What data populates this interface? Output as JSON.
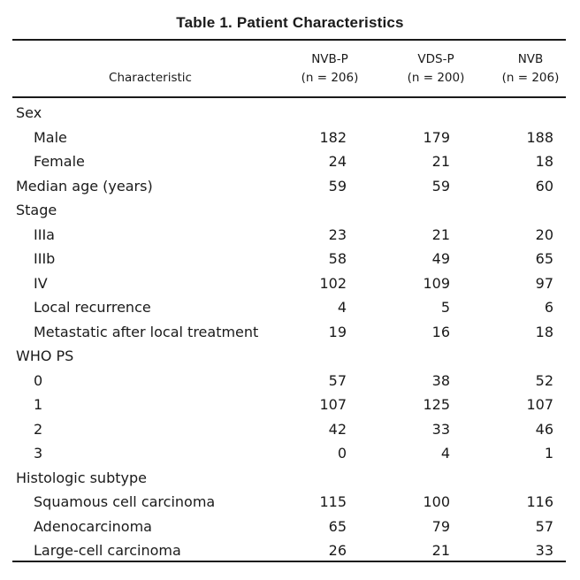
{
  "title": "Table 1.  Patient Characteristics",
  "header": {
    "characteristic": "Characteristic",
    "columns": [
      {
        "name": "NVB-P",
        "n": "(n = 206)"
      },
      {
        "name": "VDS-P",
        "n": "(n = 200)"
      },
      {
        "name": "NVB",
        "n": "(n = 206)"
      }
    ]
  },
  "rows": [
    {
      "label": "Sex",
      "type": "section",
      "values": [
        "",
        "",
        ""
      ]
    },
    {
      "label": "Male",
      "type": "item",
      "values": [
        "182",
        "179",
        "188"
      ]
    },
    {
      "label": "Female",
      "type": "item",
      "values": [
        "24",
        "21",
        "18"
      ]
    },
    {
      "label": "Median age (years)",
      "type": "section",
      "values": [
        "59",
        "59",
        "60"
      ]
    },
    {
      "label": "Stage",
      "type": "section",
      "values": [
        "",
        "",
        ""
      ]
    },
    {
      "label": "IIIa",
      "type": "item",
      "values": [
        "23",
        "21",
        "20"
      ]
    },
    {
      "label": "IIIb",
      "type": "item",
      "values": [
        "58",
        "49",
        "65"
      ]
    },
    {
      "label": "IV",
      "type": "item",
      "values": [
        "102",
        "109",
        "97"
      ]
    },
    {
      "label": "Local recurrence",
      "type": "item",
      "values": [
        "4",
        "5",
        "6"
      ]
    },
    {
      "label": "Metastatic after local treatment",
      "type": "item",
      "values": [
        "19",
        "16",
        "18"
      ]
    },
    {
      "label": "WHO PS",
      "type": "section",
      "values": [
        "",
        "",
        ""
      ]
    },
    {
      "label": "0",
      "type": "item",
      "values": [
        "57",
        "38",
        "52"
      ]
    },
    {
      "label": "1",
      "type": "item",
      "values": [
        "107",
        "125",
        "107"
      ]
    },
    {
      "label": "2",
      "type": "item",
      "values": [
        "42",
        "33",
        "46"
      ]
    },
    {
      "label": "3",
      "type": "item",
      "values": [
        "0",
        "4",
        "1"
      ]
    },
    {
      "label": "Histologic subtype",
      "type": "section",
      "values": [
        "",
        "",
        ""
      ]
    },
    {
      "label": "Squamous cell carcinoma",
      "type": "item",
      "values": [
        "115",
        "100",
        "116"
      ]
    },
    {
      "label": "Adenocarcinoma",
      "type": "item",
      "values": [
        "65",
        "79",
        "57"
      ]
    },
    {
      "label": "Large-cell carcinoma",
      "type": "item",
      "values": [
        "26",
        "21",
        "33"
      ]
    }
  ]
}
